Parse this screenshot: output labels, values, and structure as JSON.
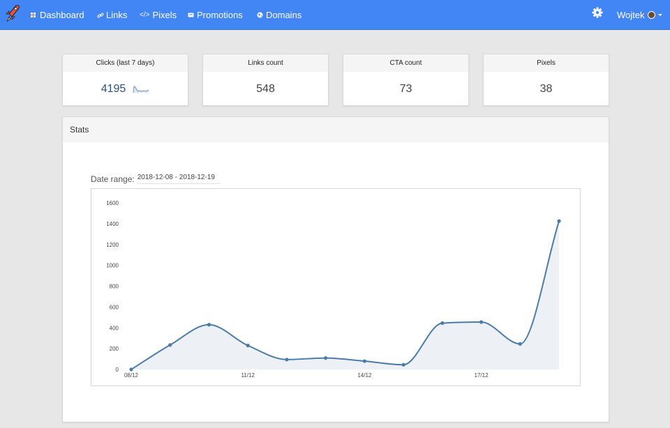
{
  "nav": {
    "items": [
      {
        "label": "Dashboard",
        "icon": "grid-icon"
      },
      {
        "label": "Links",
        "icon": "link-icon"
      },
      {
        "label": "Pixels",
        "icon": "code-icon"
      },
      {
        "label": "Promotions",
        "icon": "ticket-icon"
      },
      {
        "label": "Domains",
        "icon": "globe-icon"
      }
    ],
    "user_name": "Wojtek",
    "accent": "#4285f4"
  },
  "cards": [
    {
      "title": "Clicks (last 7 days)",
      "value": "4195"
    },
    {
      "title": "Links count",
      "value": "548"
    },
    {
      "title": "CTA count",
      "value": "73"
    },
    {
      "title": "Pixels",
      "value": "38"
    }
  ],
  "stats": {
    "title": "Stats",
    "date_range_label": "Date range:",
    "date_range_value": "2018-12-08 - 2018-12-19"
  },
  "chart_data": {
    "type": "area",
    "x": [
      "08/12",
      "09/12",
      "10/12",
      "11/12",
      "12/12",
      "13/12",
      "14/12",
      "15/12",
      "16/12",
      "17/12",
      "18/12",
      "19/12"
    ],
    "xticks": [
      "08/12",
      "11/12",
      "14/12",
      "17/12"
    ],
    "values": [
      0,
      235,
      430,
      230,
      95,
      110,
      80,
      45,
      445,
      455,
      245,
      1425
    ],
    "ylim": [
      0,
      1600
    ],
    "yticks": [
      0,
      200,
      400,
      600,
      800,
      1000,
      1200,
      1400,
      1600
    ],
    "line_color": "#4a7ba7",
    "fill_color": "#edf1f6",
    "grid": false
  }
}
